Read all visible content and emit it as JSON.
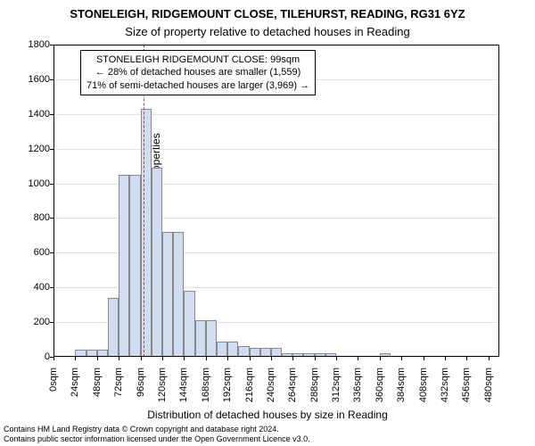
{
  "title": "STONELEIGH, RIDGEMOUNT CLOSE, TILEHURST, READING, RG31 6YZ",
  "subtitle": "Size of property relative to detached houses in Reading",
  "ylabel": "Number of detached properties",
  "xlabel": "Distribution of detached houses by size in Reading",
  "footer_line1": "Contains HM Land Registry data © Crown copyright and database right 2024.",
  "footer_line2": "Contains public sector information licensed under the Open Government Licence v3.0.",
  "annotation": {
    "line1": "STONELEIGH RIDGEMOUNT CLOSE: 99sqm",
    "line2": "← 28% of detached houses are smaller (1,559)",
    "line3": "71% of semi-detached houses are larger (3,969) →"
  },
  "chart": {
    "type": "histogram",
    "xlim": [
      0,
      492
    ],
    "ylim": [
      0,
      1800
    ],
    "ytick_step": 200,
    "xtick_step": 24,
    "x_unit_suffix": "sqm",
    "bar_bin_width": 12,
    "bar_color": "#d0dcf0",
    "bar_border_color": "#888",
    "grid_color": "#e0e0e0",
    "marker_value": 99,
    "marker_color": "#c04040",
    "title_fontsize": 13,
    "subtitle_fontsize": 13,
    "label_fontsize": 12,
    "tick_fontsize": 11,
    "annotation_fontsize": 11,
    "footer_fontsize": 9,
    "bars": [
      {
        "x": 0,
        "y": 0
      },
      {
        "x": 12,
        "y": 0
      },
      {
        "x": 24,
        "y": 40
      },
      {
        "x": 36,
        "y": 40
      },
      {
        "x": 48,
        "y": 40
      },
      {
        "x": 60,
        "y": 340
      },
      {
        "x": 72,
        "y": 1050
      },
      {
        "x": 84,
        "y": 1050
      },
      {
        "x": 96,
        "y": 1430
      },
      {
        "x": 108,
        "y": 1090
      },
      {
        "x": 120,
        "y": 720
      },
      {
        "x": 132,
        "y": 720
      },
      {
        "x": 144,
        "y": 380
      },
      {
        "x": 156,
        "y": 210
      },
      {
        "x": 168,
        "y": 210
      },
      {
        "x": 180,
        "y": 90
      },
      {
        "x": 192,
        "y": 90
      },
      {
        "x": 204,
        "y": 60
      },
      {
        "x": 216,
        "y": 50
      },
      {
        "x": 228,
        "y": 50
      },
      {
        "x": 240,
        "y": 50
      },
      {
        "x": 252,
        "y": 20
      },
      {
        "x": 264,
        "y": 20
      },
      {
        "x": 276,
        "y": 20
      },
      {
        "x": 288,
        "y": 20
      },
      {
        "x": 300,
        "y": 20
      },
      {
        "x": 312,
        "y": 0
      },
      {
        "x": 324,
        "y": 0
      },
      {
        "x": 336,
        "y": 0
      },
      {
        "x": 348,
        "y": 0
      },
      {
        "x": 360,
        "y": 20
      },
      {
        "x": 372,
        "y": 0
      }
    ]
  }
}
